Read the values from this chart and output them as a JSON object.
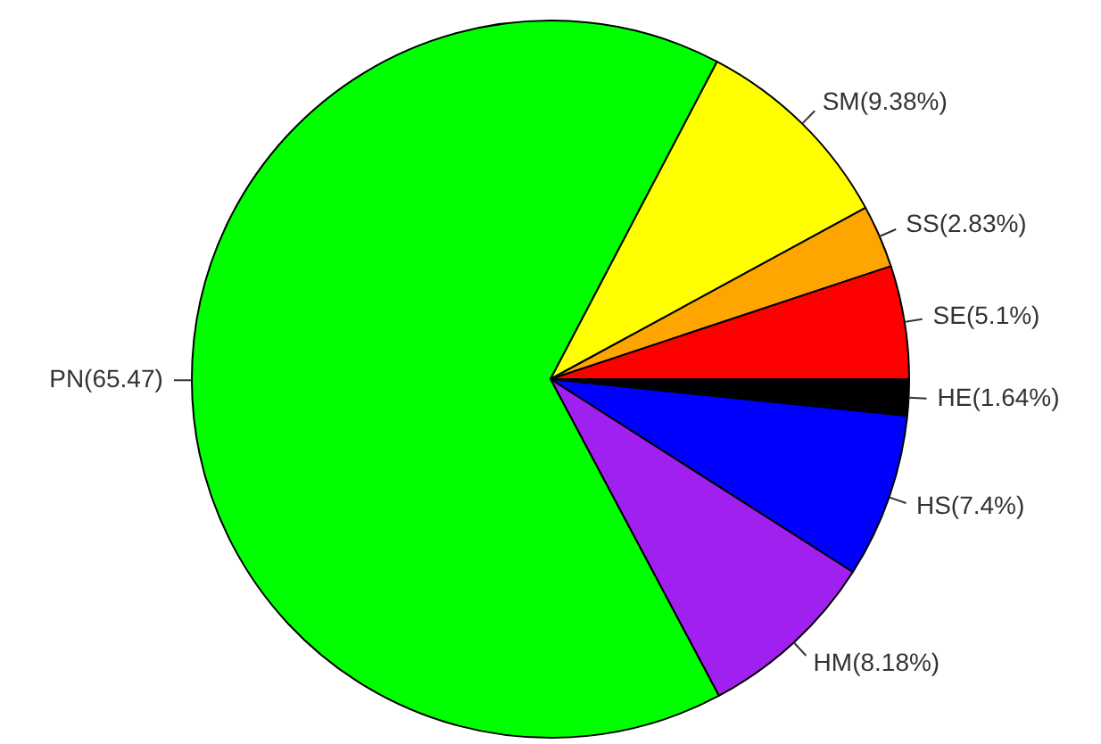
{
  "chart_data": {
    "type": "pie",
    "categories": [
      "HE",
      "HS",
      "HM",
      "PN",
      "SM",
      "SS",
      "SE"
    ],
    "values": [
      1.64,
      7.4,
      8.18,
      65.47,
      9.38,
      2.83,
      5.1
    ],
    "colors": [
      "#000000",
      "#0000ff",
      "#a020f0",
      "#00ff00",
      "#ffff00",
      "#ffa500",
      "#ff0000"
    ],
    "value_labels": [
      "(1.64%)",
      "(7.4%)",
      "(8.18%)",
      "(65.47)",
      "(9.38%)",
      "(2.83%)",
      "(5.1%)"
    ],
    "legend": false
  }
}
